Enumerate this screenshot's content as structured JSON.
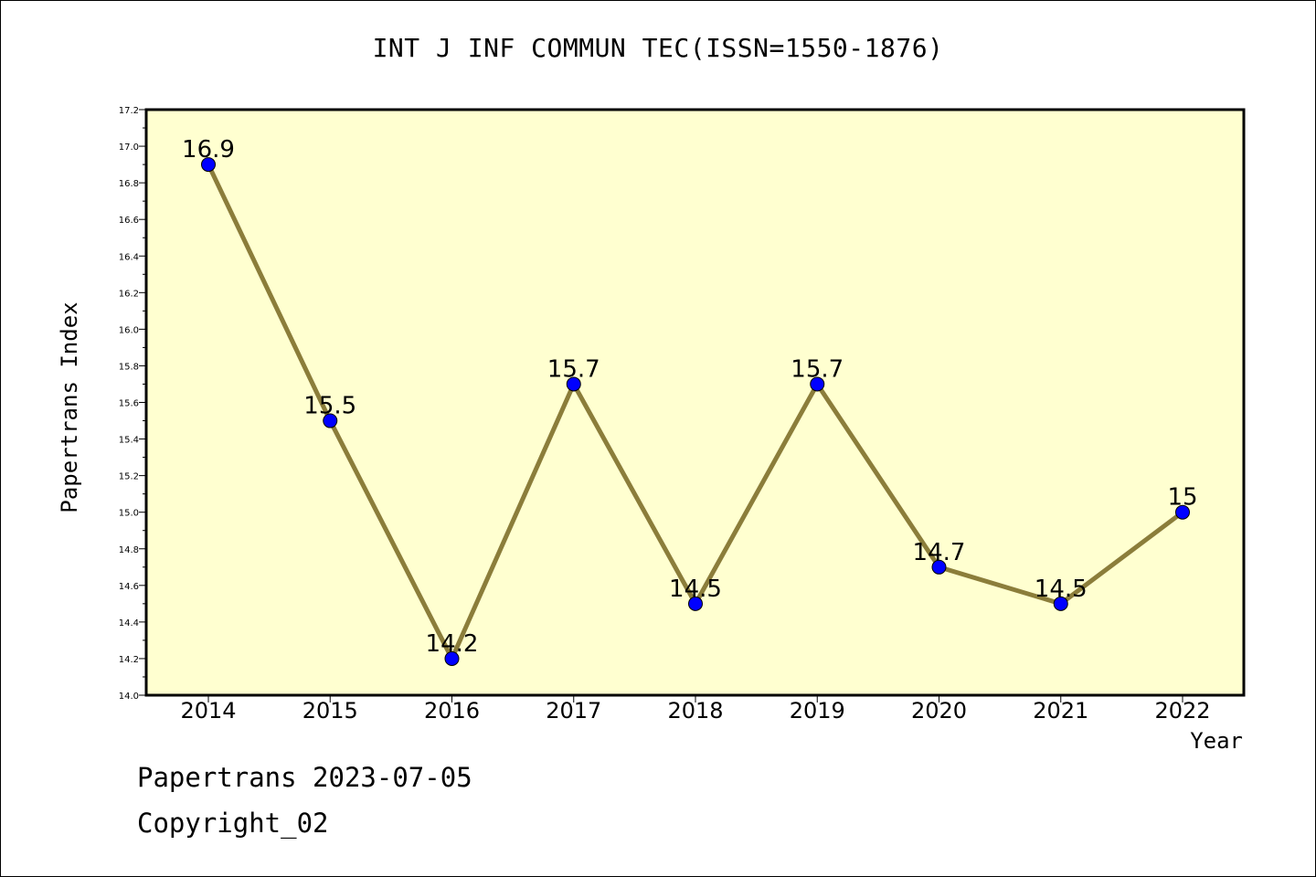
{
  "chart_data": {
    "type": "line",
    "title": "INT J INF COMMUN TEC(ISSN=1550-1876)",
    "xlabel": "Year",
    "ylabel": "Papertrans Index",
    "categories": [
      "2014",
      "2015",
      "2016",
      "2017",
      "2018",
      "2019",
      "2020",
      "2021",
      "2022"
    ],
    "values": [
      16.9,
      15.5,
      14.2,
      15.7,
      14.5,
      15.7,
      14.7,
      14.5,
      15
    ],
    "data_labels": [
      "16.9",
      "15.5",
      "14.2",
      "15.7",
      "14.5",
      "15.7",
      "14.7",
      "14.5",
      "15"
    ],
    "ylim": [
      14.0,
      17.2
    ],
    "y_ticks": [
      "14.0",
      "14.2",
      "14.4",
      "14.6",
      "14.8",
      "15.0",
      "15.2",
      "15.4",
      "15.6",
      "15.8",
      "16.0",
      "16.2",
      "16.4",
      "16.6",
      "16.8",
      "17.0",
      "17.2"
    ],
    "grid": false,
    "legend": "none",
    "colors": {
      "plot_background": "#FFFFD0",
      "line": "#8B7D3A",
      "marker": "#0000FF"
    }
  },
  "footer": {
    "date_line": "Papertrans 2023-07-05",
    "copyright_line": "Copyright_02"
  }
}
